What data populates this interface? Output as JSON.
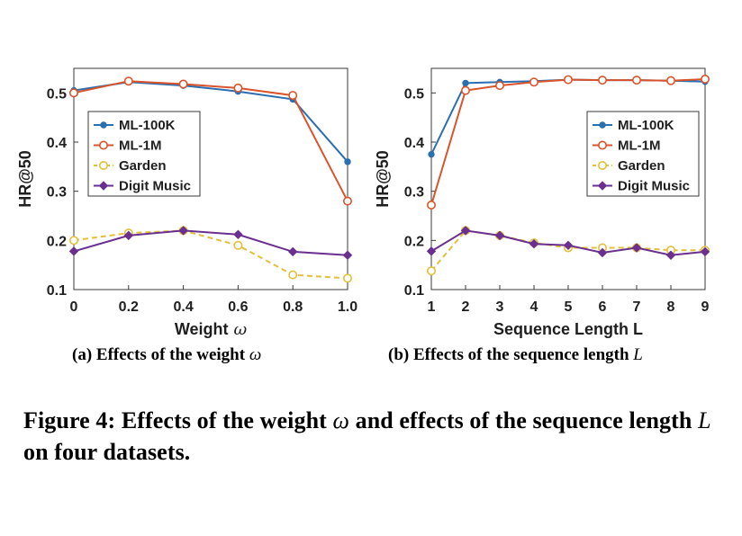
{
  "chart_data": [
    {
      "type": "line",
      "xlabel": "Weight",
      "xlabel_symbol": "ω",
      "ylabel": "HR@50",
      "x": [
        0,
        0.2,
        0.4,
        0.6,
        0.8,
        1.0
      ],
      "x_tick_labels": [
        "0",
        "0.2",
        "0.4",
        "0.6",
        "0.8",
        "1.0"
      ],
      "y_tick_labels": [
        "0.1",
        "0.2",
        "0.3",
        "0.4",
        "0.5"
      ],
      "xlim": [
        0,
        1.0
      ],
      "ylim": [
        0.1,
        0.55
      ],
      "grid": false,
      "legend_position": "center-left",
      "series": [
        {
          "name": "ML-100K",
          "color": "#2a6fb0",
          "marker": "dot",
          "dashed": false,
          "values": [
            0.505,
            0.522,
            0.515,
            0.503,
            0.487,
            0.36
          ]
        },
        {
          "name": "ML-1M",
          "color": "#d9532b",
          "marker": "circle",
          "dashed": false,
          "values": [
            0.5,
            0.524,
            0.518,
            0.51,
            0.495,
            0.28
          ]
        },
        {
          "name": "Garden",
          "color": "#e3c039",
          "marker": "circle",
          "dashed": true,
          "values": [
            0.2,
            0.215,
            0.22,
            0.19,
            0.13,
            0.123
          ]
        },
        {
          "name": "Digit Music",
          "color": "#6b2f8f",
          "marker": "diamond",
          "dashed": false,
          "values": [
            0.178,
            0.21,
            0.22,
            0.212,
            0.177,
            0.17
          ]
        }
      ]
    },
    {
      "type": "line",
      "xlabel": "Sequence Length L",
      "ylabel": "HR@50",
      "x": [
        1,
        2,
        3,
        4,
        5,
        6,
        7,
        8,
        9
      ],
      "x_tick_labels": [
        "1",
        "2",
        "3",
        "4",
        "5",
        "6",
        "7",
        "8",
        "9"
      ],
      "y_tick_labels": [
        "0.1",
        "0.2",
        "0.3",
        "0.4",
        "0.5"
      ],
      "xlim": [
        1,
        9
      ],
      "ylim": [
        0.1,
        0.55
      ],
      "grid": false,
      "legend_position": "top-right",
      "series": [
        {
          "name": "ML-100K",
          "color": "#2a6fb0",
          "marker": "dot",
          "dashed": false,
          "values": [
            0.375,
            0.52,
            0.522,
            0.524,
            0.527,
            0.526,
            0.526,
            0.525,
            0.523
          ]
        },
        {
          "name": "ML-1M",
          "color": "#d9532b",
          "marker": "circle",
          "dashed": false,
          "values": [
            0.272,
            0.505,
            0.515,
            0.522,
            0.527,
            0.526,
            0.526,
            0.525,
            0.528
          ]
        },
        {
          "name": "Garden",
          "color": "#e3c039",
          "marker": "circle",
          "dashed": true,
          "values": [
            0.138,
            0.22,
            0.21,
            0.195,
            0.185,
            0.185,
            0.185,
            0.18,
            0.18
          ]
        },
        {
          "name": "Digit Music",
          "color": "#6b2f8f",
          "marker": "diamond",
          "dashed": false,
          "values": [
            0.178,
            0.22,
            0.21,
            0.193,
            0.19,
            0.175,
            0.185,
            0.17,
            0.177
          ]
        }
      ]
    }
  ],
  "subcaptions": {
    "a_text": "(a) Effects of the weight ",
    "a_symbol": "ω",
    "b_text": "(b) Effects of the sequence length ",
    "b_symbol": "L"
  },
  "caption": {
    "part1": "Figure 4: Effects of the weight ",
    "symbol1": "ω",
    "part2": " and effects of the sequence length ",
    "symbol2": "L",
    "part3": " on four datasets."
  }
}
